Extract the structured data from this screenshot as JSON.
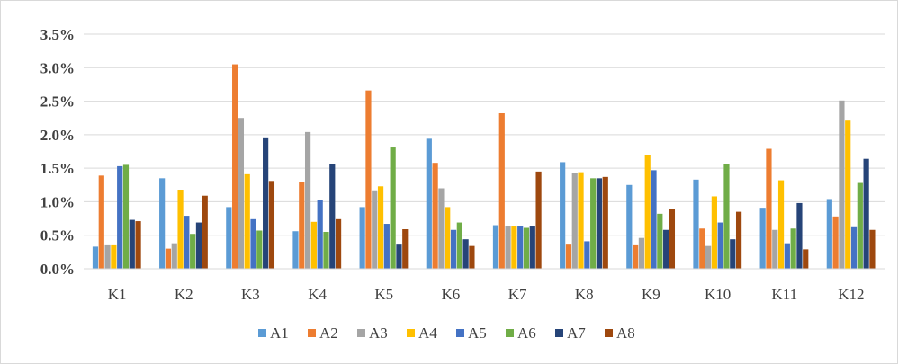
{
  "chart_data": {
    "type": "bar",
    "title": "",
    "xlabel": "",
    "ylabel": "",
    "ylim": [
      0,
      0.035
    ],
    "y_ticks": [
      "0.0%",
      "0.5%",
      "1.0%",
      "1.5%",
      "2.0%",
      "2.5%",
      "3.0%",
      "3.5%"
    ],
    "grid": true,
    "legend_position": "bottom",
    "categories": [
      "K1",
      "K2",
      "K3",
      "K4",
      "K5",
      "K6",
      "K7",
      "K8",
      "K9",
      "K10",
      "K11",
      "K12"
    ],
    "series": [
      {
        "name": "A1",
        "color": "#5B9BD5",
        "values": [
          0.0033,
          0.0135,
          0.0092,
          0.0056,
          0.0092,
          0.0194,
          0.0065,
          0.0159,
          0.0125,
          0.0133,
          0.0091,
          0.0104
        ]
      },
      {
        "name": "A2",
        "color": "#ED7D31",
        "values": [
          0.0139,
          0.003,
          0.0305,
          0.013,
          0.0266,
          0.0158,
          0.0232,
          0.0036,
          0.0035,
          0.006,
          0.0179,
          0.0078
        ]
      },
      {
        "name": "A3",
        "color": "#A5A5A5",
        "values": [
          0.0035,
          0.0038,
          0.0225,
          0.0204,
          0.0117,
          0.012,
          0.0064,
          0.0143,
          0.0046,
          0.0034,
          0.0058,
          0.0251
        ]
      },
      {
        "name": "A4",
        "color": "#FFC000",
        "values": [
          0.0035,
          0.0118,
          0.0141,
          0.007,
          0.0123,
          0.0092,
          0.0063,
          0.0144,
          0.017,
          0.0108,
          0.0132,
          0.0221
        ]
      },
      {
        "name": "A5",
        "color": "#4472C4",
        "values": [
          0.0153,
          0.0079,
          0.0074,
          0.0103,
          0.0067,
          0.0058,
          0.0063,
          0.0041,
          0.0147,
          0.0069,
          0.0038,
          0.0062
        ]
      },
      {
        "name": "A6",
        "color": "#70AD47",
        "values": [
          0.0155,
          0.0052,
          0.0057,
          0.0055,
          0.0181,
          0.0069,
          0.0061,
          0.0135,
          0.0082,
          0.0156,
          0.006,
          0.0128
        ]
      },
      {
        "name": "A7",
        "color": "#264478",
        "values": [
          0.0073,
          0.0069,
          0.0196,
          0.0156,
          0.0036,
          0.0044,
          0.0063,
          0.0135,
          0.0058,
          0.0044,
          0.0098,
          0.0164
        ]
      },
      {
        "name": "A8",
        "color": "#9E480E",
        "values": [
          0.0071,
          0.0109,
          0.0131,
          0.0074,
          0.0059,
          0.0034,
          0.0145,
          0.0137,
          0.0089,
          0.0085,
          0.0029,
          0.0058
        ]
      }
    ]
  }
}
